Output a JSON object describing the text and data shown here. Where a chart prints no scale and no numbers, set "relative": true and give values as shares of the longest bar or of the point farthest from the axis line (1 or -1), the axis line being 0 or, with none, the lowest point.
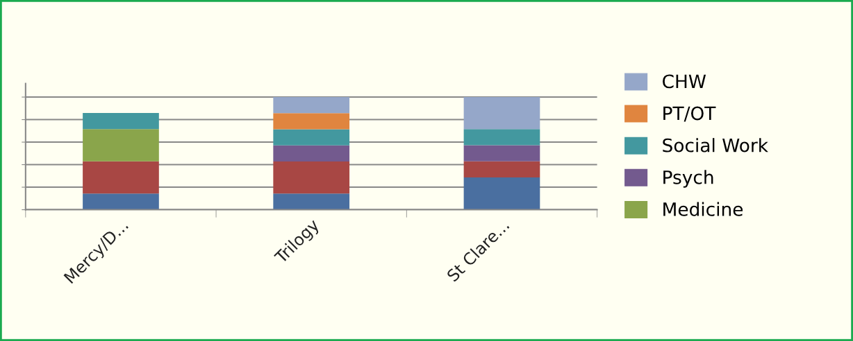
{
  "chart_data": {
    "type": "bar",
    "stacked": true,
    "relative": true,
    "grid": "y",
    "legend": "right",
    "categories": [
      "Mercy/D...",
      "Trilogy",
      "St Clare..."
    ],
    "series": [
      {
        "color": "#4a6fa0",
        "values": [
          0.143,
          0.143,
          0.286
        ]
      },
      {
        "color": "#a84744",
        "values": [
          0.286,
          0.285,
          0.143
        ]
      },
      {
        "name": "Medicine",
        "color": "#8aa54b",
        "values": [
          0.286,
          null,
          null
        ]
      },
      {
        "name": "Psych",
        "color": "#735a8e",
        "values": [
          null,
          0.143,
          0.143
        ]
      },
      {
        "name": "Social Work",
        "color": "#43989f",
        "values": [
          0.143,
          0.143,
          0.143
        ]
      },
      {
        "name": "PT/OT",
        "color": "#e0853f",
        "values": [
          null,
          0.143,
          null
        ]
      },
      {
        "name": "CHW",
        "color": "#95a7c9",
        "values": [
          null,
          0.143,
          0.285
        ]
      }
    ]
  }
}
